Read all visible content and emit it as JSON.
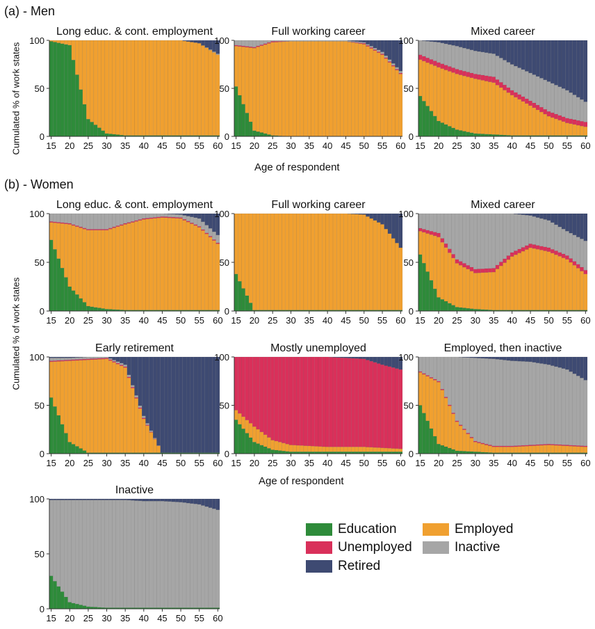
{
  "labels": {
    "men_section": "(a) - Men",
    "women_section": "(b) - Women",
    "ylabel": "Cumulated % of work states",
    "xlabel": "Age of respondent"
  },
  "legend": [
    {
      "state": "Education",
      "color": "#2e8b3a"
    },
    {
      "state": "Employed",
      "color": "#f0a030"
    },
    {
      "state": "Unemployed",
      "color": "#d9305a"
    },
    {
      "state": "Inactive",
      "color": "#a6a6a6"
    },
    {
      "state": "Retired",
      "color": "#3e4a72"
    }
  ],
  "chart_data": [
    {
      "type": "area",
      "group": "Men",
      "title": "Long educ. & cont. employment",
      "x": [
        15,
        20,
        25,
        30,
        35,
        40,
        45,
        50,
        55,
        60
      ],
      "series": [
        {
          "name": "Education",
          "values": [
            99,
            95,
            18,
            3,
            1,
            1,
            1,
            1,
            1,
            1
          ]
        },
        {
          "name": "Employed",
          "values": [
            1,
            5,
            82,
            97,
            99,
            99,
            99,
            99,
            96,
            84
          ]
        },
        {
          "name": "Unemployed",
          "values": [
            0,
            0,
            0,
            0,
            0,
            0,
            0,
            0,
            0,
            0
          ]
        },
        {
          "name": "Inactive",
          "values": [
            0,
            0,
            0,
            0,
            0,
            0,
            0,
            0,
            0,
            1
          ]
        },
        {
          "name": "Retired",
          "values": [
            0,
            0,
            0,
            0,
            0,
            0,
            0,
            0,
            3,
            14
          ]
        }
      ]
    },
    {
      "type": "area",
      "group": "Men",
      "title": "Full working career",
      "x": [
        15,
        20,
        25,
        30,
        35,
        40,
        45,
        50,
        55,
        60
      ],
      "series": [
        {
          "name": "Education",
          "values": [
            52,
            6,
            1,
            0,
            0,
            0,
            0,
            0,
            0,
            0
          ]
        },
        {
          "name": "Employed",
          "values": [
            42,
            86,
            97,
            99,
            99,
            99,
            99,
            96,
            85,
            65
          ]
        },
        {
          "name": "Unemployed",
          "values": [
            1,
            1,
            1,
            0,
            0,
            0,
            0,
            1,
            1,
            1
          ]
        },
        {
          "name": "Inactive",
          "values": [
            5,
            7,
            1,
            1,
            1,
            1,
            1,
            1,
            2,
            2
          ]
        },
        {
          "name": "Retired",
          "values": [
            0,
            0,
            0,
            0,
            0,
            0,
            0,
            2,
            12,
            32
          ]
        }
      ]
    },
    {
      "type": "area",
      "group": "Men",
      "title": "Mixed career",
      "x": [
        15,
        20,
        25,
        30,
        35,
        40,
        45,
        50,
        55,
        60
      ],
      "series": [
        {
          "name": "Education",
          "values": [
            42,
            16,
            7,
            3,
            2,
            1,
            1,
            1,
            1,
            1
          ]
        },
        {
          "name": "Employed",
          "values": [
            38,
            56,
            58,
            57,
            54,
            42,
            31,
            20,
            13,
            9
          ]
        },
        {
          "name": "Unemployed",
          "values": [
            5,
            5,
            5,
            5,
            6,
            5,
            5,
            5,
            5,
            5
          ]
        },
        {
          "name": "Inactive",
          "values": [
            15,
            21,
            24,
            24,
            24,
            27,
            29,
            31,
            29,
            21
          ]
        },
        {
          "name": "Retired",
          "values": [
            0,
            2,
            6,
            11,
            14,
            25,
            34,
            43,
            52,
            64
          ]
        }
      ]
    },
    {
      "type": "area",
      "group": "Women",
      "title": "Long educ. & cont. employment",
      "x": [
        15,
        20,
        25,
        30,
        35,
        40,
        45,
        50,
        55,
        60
      ],
      "series": [
        {
          "name": "Education",
          "values": [
            73,
            25,
            5,
            2,
            1,
            1,
            1,
            1,
            1,
            1
          ]
        },
        {
          "name": "Employed",
          "values": [
            18,
            64,
            78,
            81,
            88,
            93,
            95,
            94,
            85,
            68
          ]
        },
        {
          "name": "Unemployed",
          "values": [
            1,
            1,
            1,
            1,
            1,
            1,
            1,
            1,
            1,
            1
          ]
        },
        {
          "name": "Inactive",
          "values": [
            8,
            10,
            16,
            16,
            10,
            5,
            3,
            3,
            8,
            8
          ]
        },
        {
          "name": "Retired",
          "values": [
            0,
            0,
            0,
            0,
            0,
            0,
            0,
            1,
            5,
            22
          ]
        }
      ]
    },
    {
      "type": "area",
      "group": "Women",
      "title": "Full working career",
      "x": [
        15,
        20,
        25,
        30,
        35,
        40,
        45,
        50,
        55,
        60
      ],
      "series": [
        {
          "name": "Education",
          "values": [
            38,
            1,
            1,
            1,
            1,
            1,
            1,
            1,
            1,
            1
          ]
        },
        {
          "name": "Employed",
          "values": [
            62,
            99,
            99,
            99,
            99,
            99,
            99,
            98,
            88,
            64
          ]
        },
        {
          "name": "Unemployed",
          "values": [
            0,
            0,
            0,
            0,
            0,
            0,
            0,
            0,
            0,
            0
          ]
        },
        {
          "name": "Inactive",
          "values": [
            0,
            0,
            0,
            0,
            0,
            0,
            0,
            0,
            0,
            0
          ]
        },
        {
          "name": "Retired",
          "values": [
            0,
            0,
            0,
            0,
            0,
            0,
            0,
            1,
            11,
            35
          ]
        }
      ]
    },
    {
      "type": "area",
      "group": "Women",
      "title": "Mixed career",
      "x": [
        15,
        20,
        25,
        30,
        35,
        40,
        45,
        50,
        55,
        60
      ],
      "series": [
        {
          "name": "Education",
          "values": [
            58,
            14,
            4,
            2,
            1,
            1,
            1,
            1,
            1,
            1
          ]
        },
        {
          "name": "Employed",
          "values": [
            24,
            62,
            45,
            37,
            39,
            55,
            64,
            60,
            52,
            37
          ]
        },
        {
          "name": "Unemployed",
          "values": [
            3,
            4,
            4,
            4,
            4,
            4,
            4,
            4,
            4,
            4
          ]
        },
        {
          "name": "Inactive",
          "values": [
            15,
            20,
            47,
            57,
            56,
            40,
            29,
            28,
            25,
            30
          ]
        },
        {
          "name": "Retired",
          "values": [
            0,
            0,
            0,
            0,
            0,
            0,
            2,
            7,
            18,
            28
          ]
        }
      ]
    },
    {
      "type": "area",
      "group": "Women",
      "title": "Early retirement",
      "x": [
        15,
        20,
        25,
        30,
        35,
        40,
        45,
        50,
        55,
        60
      ],
      "series": [
        {
          "name": "Education",
          "values": [
            58,
            12,
            1,
            1,
            1,
            1,
            1,
            1,
            1,
            1
          ]
        },
        {
          "name": "Employed",
          "values": [
            37,
            84,
            96,
            97,
            88,
            35,
            0,
            0,
            0,
            0
          ]
        },
        {
          "name": "Unemployed",
          "values": [
            1,
            1,
            1,
            1,
            1,
            1,
            0,
            0,
            0,
            0
          ]
        },
        {
          "name": "Inactive",
          "values": [
            3,
            2,
            2,
            1,
            2,
            2,
            0,
            0,
            0,
            0
          ]
        },
        {
          "name": "Retired",
          "values": [
            1,
            1,
            0,
            0,
            8,
            61,
            99,
            99,
            99,
            99
          ]
        }
      ]
    },
    {
      "type": "area",
      "group": "Women",
      "title": "Mostly unemployed",
      "x": [
        15,
        20,
        25,
        30,
        35,
        40,
        45,
        50,
        55,
        60
      ],
      "series": [
        {
          "name": "Education",
          "values": [
            35,
            12,
            4,
            2,
            2,
            2,
            2,
            2,
            2,
            2
          ]
        },
        {
          "name": "Employed",
          "values": [
            10,
            16,
            10,
            7,
            6,
            5,
            5,
            5,
            4,
            3
          ]
        },
        {
          "name": "Unemployed",
          "values": [
            55,
            72,
            86,
            91,
            92,
            93,
            92,
            91,
            86,
            82
          ]
        },
        {
          "name": "Inactive",
          "values": [
            0,
            0,
            0,
            0,
            0,
            0,
            0,
            0,
            0,
            0
          ]
        },
        {
          "name": "Retired",
          "values": [
            0,
            0,
            0,
            0,
            0,
            0,
            1,
            2,
            8,
            13
          ]
        }
      ]
    },
    {
      "type": "area",
      "group": "Women",
      "title": "Employed, then inactive",
      "x": [
        15,
        20,
        25,
        30,
        35,
        40,
        45,
        50,
        55,
        60
      ],
      "series": [
        {
          "name": "Education",
          "values": [
            50,
            10,
            3,
            2,
            1,
            1,
            1,
            1,
            1,
            1
          ]
        },
        {
          "name": "Employed",
          "values": [
            34,
            64,
            30,
            10,
            6,
            6,
            7,
            8,
            7,
            6
          ]
        },
        {
          "name": "Unemployed",
          "values": [
            1,
            1,
            1,
            1,
            1,
            1,
            1,
            1,
            1,
            1
          ]
        },
        {
          "name": "Inactive",
          "values": [
            15,
            25,
            66,
            86,
            90,
            88,
            86,
            82,
            78,
            68
          ]
        },
        {
          "name": "Retired",
          "values": [
            0,
            0,
            0,
            1,
            2,
            4,
            5,
            8,
            13,
            24
          ]
        }
      ]
    },
    {
      "type": "area",
      "group": "Women",
      "title": "Inactive",
      "x": [
        15,
        20,
        25,
        30,
        35,
        40,
        45,
        50,
        55,
        60
      ],
      "series": [
        {
          "name": "Education",
          "values": [
            30,
            6,
            2,
            1,
            1,
            1,
            1,
            1,
            1,
            1
          ]
        },
        {
          "name": "Employed",
          "values": [
            0,
            0,
            0,
            0,
            0,
            0,
            0,
            0,
            0,
            0
          ]
        },
        {
          "name": "Unemployed",
          "values": [
            0,
            0,
            0,
            0,
            0,
            0,
            0,
            0,
            0,
            0
          ]
        },
        {
          "name": "Inactive",
          "values": [
            69,
            93,
            97,
            98,
            98,
            97,
            97,
            96,
            94,
            89
          ]
        },
        {
          "name": "Retired",
          "values": [
            1,
            1,
            1,
            1,
            1,
            2,
            2,
            3,
            5,
            10
          ]
        }
      ]
    }
  ],
  "axes": {
    "ylim": [
      0,
      100
    ],
    "yticks": [
      0,
      50,
      100
    ],
    "xticks": [
      15,
      20,
      25,
      30,
      35,
      40,
      45,
      50,
      55,
      60
    ]
  }
}
